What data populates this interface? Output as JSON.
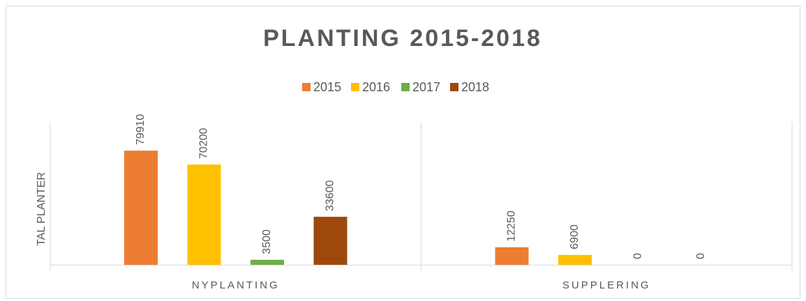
{
  "chart_data": {
    "type": "bar",
    "title": "PLANTING 2015-2018",
    "y_label": "TAL PLANTER",
    "categories": [
      "NYPLANTING",
      "SUPPLERING"
    ],
    "series": [
      {
        "name": "2015",
        "color": "#ed7d31",
        "values": [
          79910,
          12250
        ]
      },
      {
        "name": "2016",
        "color": "#ffc000",
        "values": [
          70200,
          6900
        ]
      },
      {
        "name": "2017",
        "color": "#70ad47",
        "values": [
          3500,
          0
        ]
      },
      {
        "name": "2018",
        "color": "#9e480e",
        "values": [
          33600,
          0
        ]
      }
    ],
    "ylim": [
      0,
      100000
    ],
    "legend": "top"
  }
}
